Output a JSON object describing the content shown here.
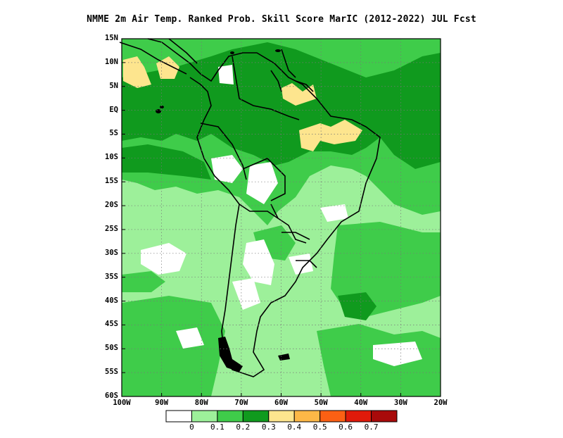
{
  "title": "NMME  2m Air Temp. Ranked Prob. Skill Score MarIC (2012-2022) JUL Fcst",
  "map": {
    "lat_labels": [
      "15N",
      "10N",
      "5N",
      "EQ",
      "5S",
      "10S",
      "15S",
      "20S",
      "25S",
      "30S",
      "35S",
      "40S",
      "45S",
      "50S",
      "55S",
      "60S"
    ],
    "lon_labels": [
      "100W",
      "90W",
      "80W",
      "70W",
      "60W",
      "50W",
      "40W",
      "30W",
      "20W"
    ],
    "lat_range": [
      -60,
      15
    ],
    "lon_range": [
      -100,
      -20
    ],
    "grid": "dotted"
  },
  "colorbar": {
    "colors": [
      "#ffffff",
      "#9df09a",
      "#3fcc4a",
      "#109a1e",
      "#fde58e",
      "#fdb847",
      "#fb6014",
      "#e01a0a",
      "#a80a0a"
    ],
    "labels": [
      "0",
      "0.1",
      "0.2",
      "0.3",
      "0.4",
      "0.5",
      "0.6",
      "0.7"
    ]
  }
}
